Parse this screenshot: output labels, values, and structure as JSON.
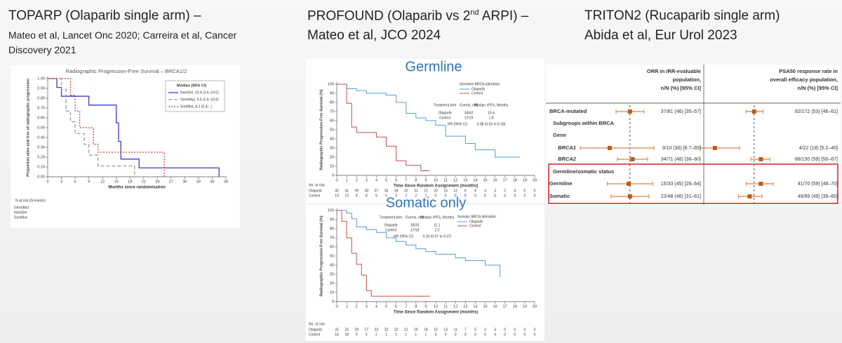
{
  "panels": [
    {
      "title": "TOPARP (Olaparib single arm) –",
      "subtitle": "Mateo et al, Lancet Onc 2020; Carreira et al, Cancer Discovery 2021",
      "chart": {
        "type": "step",
        "title": "Radiographic Progression-Free Survival – BRCA1/2",
        "y_label": "Proportion alive and free of radiographic progression",
        "x_label": "Months since randomisation",
        "xlim": [
          0,
          39
        ],
        "xticks": [
          0,
          3,
          6,
          9,
          12,
          15,
          18,
          21,
          24,
          27,
          30,
          33,
          36,
          39
        ],
        "ylim": [
          0,
          1
        ],
        "yticks": [
          {
            "value": 0,
            "label": "0.00"
          },
          {
            "value": 0.1,
            "label": "0.10"
          },
          {
            "value": 0.2,
            "label": "0.20"
          },
          {
            "value": 0.3,
            "label": "0.30"
          },
          {
            "value": 0.4,
            "label": "0.40"
          },
          {
            "value": 0.5,
            "label": "0.50"
          },
          {
            "value": 0.6,
            "label": "0.60"
          },
          {
            "value": 0.7,
            "label": "0.70"
          },
          {
            "value": 0.8,
            "label": "0.80"
          },
          {
            "value": 0.9,
            "label": "0.90"
          },
          {
            "value": 1,
            "label": "1.00"
          }
        ],
        "legend_title": "Median (95% CI)",
        "series": [
          {
            "name": "HomDel, 10.4 (3.6–19.5)",
            "color": "#3b3bd1",
            "dash": "solid",
            "x": [
              0,
              2,
              3,
              6,
              9,
              15,
              15.5,
              16,
              20,
              37.5
            ],
            "values": [
              1,
              0.91,
              0.82,
              0.82,
              0.73,
              0.55,
              0.36,
              0.18,
              0.09,
              0
            ]
          },
          {
            "name": "GermMut, 5.6 (2.6–10.8)",
            "color": "#9a9a9a",
            "dash": "dashed",
            "x": [
              0,
              3,
              4,
              5,
              6,
              8,
              9,
              11,
              15,
              19,
              21
            ],
            "values": [
              1,
              0.89,
              0.67,
              0.56,
              0.44,
              0.33,
              0.22,
              0.11,
              0.11,
              0,
              0
            ]
          },
          {
            "name": "SomMut, 8.2 (5.4– .)",
            "color": "#d43a3a",
            "dash": "dotted",
            "x": [
              0,
              5,
              6,
              7,
              8,
              10,
              11,
              25,
              25.5
            ],
            "values": [
              1,
              0.83,
              0.67,
              0.5,
              0.5,
              0.33,
              0.25,
              0.25,
              0
            ]
          }
        ],
        "risk_title": "N at risk (N events)",
        "risk_labels": [
          "GermMut",
          "HomDel",
          "SomMut"
        ]
      }
    },
    {
      "title_start": "PROFOUND (Olaparib vs 2",
      "title_sup": "nd",
      "title_end": " ARPI) –",
      "subtitle": "Mateo et al, JCO 2024",
      "charts": [
        {
          "type": "step",
          "title": "Germline",
          "legend_title": "Germline BRCA alteration",
          "y_label": "Radiographic Progression-Free Survival (%)",
          "x_label": "Time Since Random Assignment (months)",
          "xlim": [
            0,
            20
          ],
          "xticks": [
            0,
            1,
            2,
            3,
            4,
            5,
            6,
            7,
            8,
            9,
            10,
            11,
            12,
            13,
            14,
            15,
            16,
            17,
            18,
            19,
            20
          ],
          "ylim": [
            0,
            100
          ],
          "yticks": [
            0,
            10,
            20,
            30,
            40,
            50,
            60,
            70,
            80,
            90,
            100
          ],
          "series": [
            {
              "name": "Olaparib",
              "color": "#5b9bd5",
              "x": [
                0,
                1,
                2,
                3,
                4,
                5,
                6,
                7,
                8,
                9,
                10,
                11,
                13,
                14,
                16,
                18.5
              ],
              "values": [
                100,
                95,
                93,
                90,
                90,
                88,
                80,
                68,
                63,
                60,
                55,
                43,
                35,
                28,
                20,
                20
              ]
            },
            {
              "name": "Control",
              "color": "#c0504d",
              "x": [
                0,
                1,
                1.5,
                2,
                4,
                5,
                6,
                7,
                8.5,
                9.4
              ],
              "values": [
                100,
                79,
                53,
                47,
                42,
                32,
                16,
                11,
                5,
                5
              ]
            }
          ],
          "table": {
            "headers": [
              "Treatment Arm",
              "Events, n/N",
              "Median rPFS, Months"
            ],
            "rows": [
              [
                "Olaparib",
                "34/42",
                "10.4"
              ],
              [
                "Control",
                "17/19",
                "1.8"
              ]
            ],
            "hr_label": "HR (95% CI)",
            "hr": "0.08 (0.03 to 0.18)"
          },
          "risk_title": "No. at risk:",
          "risk": [
            {
              "name": "Olaparib",
              "values": [
                42,
                41,
                39,
                38,
                37,
                36,
                34,
                32,
                31,
                21,
                20,
                16,
                13,
                6,
                4,
                3,
                3,
                2,
                0,
                0,
                0
              ]
            },
            {
              "name": "Control",
              "values": [
                19,
                19,
                9,
                8,
                5,
                5,
                3,
                2,
                2,
                1,
                0,
                0,
                0,
                0,
                0,
                0,
                0,
                0,
                0,
                0,
                0
              ]
            }
          ]
        },
        {
          "type": "step",
          "title": "Somatic only",
          "legend_title": "Somatic BRCA alteration",
          "y_label": "Radiographic Progression-Free Survival (%)",
          "x_label": "Time Since Random Assignment (months)",
          "xlim": [
            0,
            20
          ],
          "xticks": [
            0,
            1,
            2,
            3,
            4,
            5,
            6,
            7,
            8,
            9,
            10,
            11,
            12,
            13,
            14,
            15,
            16,
            17,
            18,
            19,
            20
          ],
          "ylim": [
            0,
            100
          ],
          "yticks": [
            0,
            10,
            20,
            30,
            40,
            50,
            60,
            70,
            80,
            90,
            100
          ],
          "series": [
            {
              "name": "Olaparib",
              "color": "#5b9bd5",
              "x": [
                0,
                1,
                1.5,
                2,
                3,
                4,
                5,
                6,
                7,
                8,
                9,
                10,
                12,
                13,
                15,
                16.5
              ],
              "values": [
                100,
                97,
                91,
                82,
                79,
                76,
                70,
                66,
                62,
                58,
                55,
                52,
                48,
                45,
                40,
                27
              ]
            },
            {
              "name": "Control",
              "color": "#c0504d",
              "x": [
                0,
                0.5,
                1,
                1.5,
                2,
                2.5,
                3,
                3.5,
                4,
                9.4
              ],
              "values": [
                100,
                88,
                70,
                53,
                41,
                29,
                12,
                6,
                6,
                6
              ]
            }
          ],
          "table": {
            "headers": [
              "Treatment Arm",
              "Events, n/N",
              "Median rPFS, Months"
            ],
            "rows": [
              [
                "Olaparib",
                "18/33",
                "11.1"
              ],
              [
                "Control",
                "17/18",
                "2.3"
              ]
            ],
            "hr_label": "HR (95% CI)",
            "hr": "0.16 (0.07 to 0.37)"
          },
          "risk_title": "No. at risk:",
          "risk": [
            {
              "name": "Olaparib",
              "values": [
                33,
                32,
                29,
                27,
                23,
                22,
                22,
                21,
                20,
                18,
                16,
                13,
                11,
                7,
                5,
                3,
                3,
                0,
                0,
                0,
                0
              ]
            },
            {
              "name": "Control",
              "values": [
                18,
                18,
                9,
                5,
                2,
                1,
                1,
                1,
                1,
                1,
                0,
                0,
                0,
                0,
                0,
                0,
                0,
                0,
                0,
                0,
                0
              ]
            }
          ]
        }
      ]
    },
    {
      "title": "TRITON2 (Rucaparib single arm)",
      "subtitle": "Abida et al, Eur Urol 2023",
      "forest": {
        "orr_header": [
          "ORR in IRR-evaluable",
          "population,",
          "n/N (%) [95% CI]"
        ],
        "psa_header": [
          "PSA50 response rate in",
          "overall efficacy population,",
          "n/N (%) [95% CI]"
        ],
        "orr_xlim": [
          0,
          100
        ],
        "psa_xlim": [
          0,
          100
        ],
        "rows": [
          {
            "label": "BRCA-mutated",
            "orr_text": "37/81 (46) [35–57]",
            "orr": [
              46,
              35,
              57
            ],
            "psa_text": "92/172 (53) [46–61]",
            "psa": [
              53,
              46,
              61
            ]
          },
          {
            "label": "Subgroups within BRCA"
          },
          {
            "label": "Gene"
          },
          {
            "label": "BRCA1",
            "orr_text": "3/10 (30) [6.7–65]",
            "orr": [
              30,
              6.7,
              65
            ],
            "psa_text": "4/22 (18) [5.2–40]",
            "psa": [
              18,
              5.2,
              40
            ]
          },
          {
            "label": "BRCA2",
            "orr_text": "34/71 (48) [36–60]",
            "orr": [
              48,
              36,
              60
            ],
            "psa_text": "88/150 (59) [50–67]",
            "psa": [
              59,
              50,
              67
            ]
          },
          {
            "label": "Germline/somatic status"
          },
          {
            "label": "Germline",
            "orr_text": "15/33 (45) [28–64]",
            "orr": [
              45,
              28,
              64
            ],
            "psa_text": "41/70 (59) [46–70]",
            "psa": [
              59,
              46,
              70
            ]
          },
          {
            "label": "Somatic",
            "orr_text": "22/48 (46) [31–61]",
            "orr": [
              46,
              31,
              61
            ],
            "psa_text": "49/99 (49) [39–60]",
            "psa": [
              49,
              39,
              60
            ]
          }
        ]
      }
    }
  ]
}
